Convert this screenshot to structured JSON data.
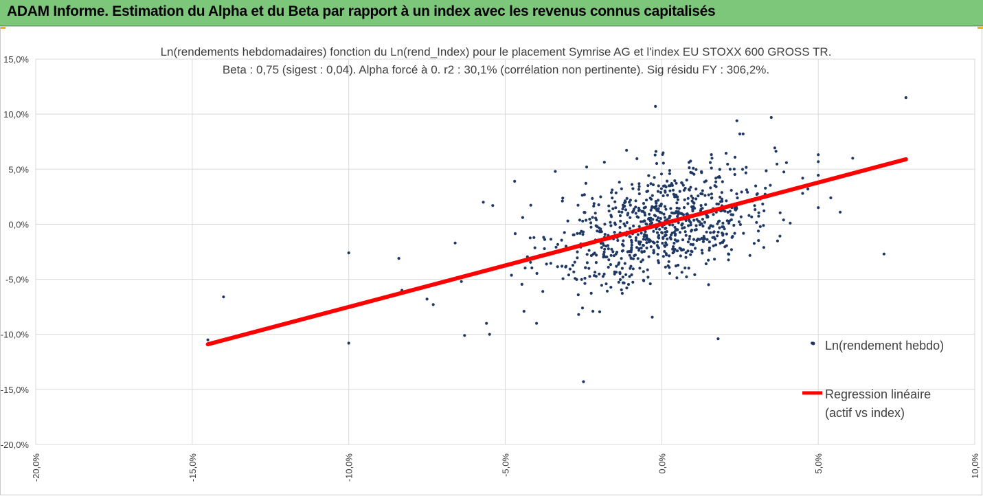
{
  "banner": {
    "title": "ADAM Informe. Estimation du Alpha et du Beta par rapport à un index avec les revenus connus capitalisés"
  },
  "colors": {
    "banner_bg": "#7dc77b",
    "points": "#1f3864",
    "regression": "#ff0000",
    "grid": "#d9d9d9"
  },
  "chart_data": {
    "type": "scatter",
    "title_lines": [
      "Ln(rendements hebdomadaires) fonction du Ln(rend_Index) pour le placement Symrise  AG et l'index EU STOXX 600 GROSS TR.",
      "Beta : 0,75 (sigest : 0,04). Alpha forcé à 0. r2 : 30,1% (corrélation non pertinente). Sig résidu FY : 306,2%."
    ],
    "xlim": [
      -0.2,
      0.1
    ],
    "ylim": [
      -0.2,
      0.15
    ],
    "x_ticks": [
      -0.2,
      -0.15,
      -0.1,
      -0.05,
      0.0,
      0.05,
      0.1
    ],
    "y_ticks": [
      -0.2,
      -0.15,
      -0.1,
      -0.05,
      0.0,
      0.05,
      0.1,
      0.15
    ],
    "x_tick_labels": [
      "-20,0%",
      "-15,0%",
      "-10,0%",
      "-5,0%",
      "0,0%",
      "5,0%",
      "10,0%"
    ],
    "y_tick_labels": [
      "-20,0%",
      "-15,0%",
      "-10,0%",
      "-5,0%",
      "0,0%",
      "5,0%",
      "10,0%",
      "15,0%"
    ],
    "grid": true,
    "legend_position": "right",
    "series": [
      {
        "name": "Ln(rendement hebdo)",
        "kind": "scatter",
        "color": "#1f3864",
        "outliers": [
          [
            -0.145,
            -0.105
          ],
          [
            -0.14,
            -0.066
          ],
          [
            -0.1,
            -0.026
          ],
          [
            -0.1,
            -0.108
          ],
          [
            -0.084,
            -0.031
          ],
          [
            -0.083,
            -0.06
          ],
          [
            -0.075,
            -0.068
          ],
          [
            -0.073,
            -0.073
          ],
          [
            -0.066,
            -0.017
          ],
          [
            -0.064,
            -0.052
          ],
          [
            -0.063,
            -0.101
          ],
          [
            -0.057,
            0.02
          ],
          [
            -0.056,
            -0.09
          ],
          [
            -0.055,
            -0.1
          ],
          [
            -0.054,
            0.017
          ],
          [
            -0.047,
            0.039
          ],
          [
            -0.044,
            -0.079
          ],
          [
            -0.04,
            -0.09
          ],
          [
            -0.038,
            -0.061
          ],
          [
            -0.034,
            0.048
          ],
          [
            -0.03,
            0.003
          ],
          [
            -0.025,
            -0.143
          ],
          [
            -0.024,
            0.052
          ],
          [
            -0.022,
            -0.079
          ],
          [
            -0.002,
            0.107
          ],
          [
            0.018,
            -0.104
          ],
          [
            0.035,
            0.097
          ],
          [
            0.048,
            -0.108
          ],
          [
            0.054,
            0.024
          ],
          [
            0.057,
            0.011
          ],
          [
            0.061,
            0.06
          ],
          [
            0.071,
            -0.027
          ],
          [
            0.078,
            0.115
          ],
          [
            0.024,
            0.094
          ],
          [
            0.026,
            0.082
          ],
          [
            0.045,
            0.028
          ]
        ],
        "cloud": {
          "points": 820,
          "x_mean": 0.0005,
          "x_sd": 0.0175,
          "beta": 0.75,
          "residual_sd": 0.025
        }
      },
      {
        "name": "Regression linéaire",
        "name_line2": "(actif vs index)",
        "kind": "line",
        "color": "#ff0000",
        "x": [
          -0.145,
          0.078
        ],
        "y": [
          -0.109,
          0.059
        ]
      }
    ]
  }
}
